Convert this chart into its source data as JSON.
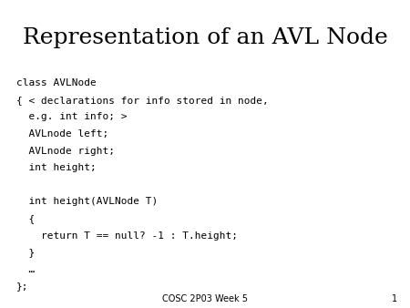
{
  "title": "Representation of an AVL Node",
  "title_fontsize": 18,
  "title_font": "serif",
  "code_lines": [
    "class AVLNode",
    "{ < declarations for info stored in node,",
    "  e.g. int info; >",
    "  AVLnode left;",
    "  AVLnode right;",
    "  int height;",
    "",
    "  int height(AVLNode T)",
    "  {",
    "    return T == null? -1 : T.height;",
    "  }",
    "  …",
    "};"
  ],
  "code_fontsize": 8.0,
  "code_font": "monospace",
  "footer_text": "COSC 2P03 Week 5",
  "footer_number": "1",
  "footer_fontsize": 7,
  "bg_color": "#ffffff",
  "text_color": "#000000"
}
